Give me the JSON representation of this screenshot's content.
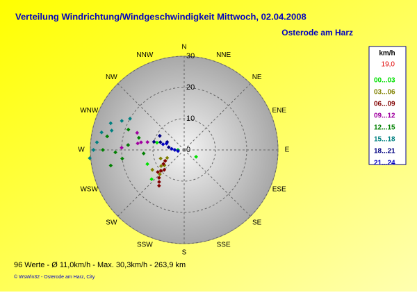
{
  "chart_data": {
    "type": "polar-scatter",
    "title": "Verteilung Windrichtung/Windgeschwindigkeit  Mittwoch, 02.04.2008",
    "subtitle": "Osterode am Harz",
    "footer": "96 Werte  -  Ø 11,0km/h  -  Max. 30,3km/h  -  263,9 km",
    "copyright": "© WsWin32  -  Osterode am Harz, City",
    "legend_title": "km/h",
    "legend_value": "19,0",
    "directions": [
      "N",
      "NNE",
      "NE",
      "ENE",
      "E",
      "ESE",
      "SE",
      "SSE",
      "S",
      "SSW",
      "SW",
      "WSW",
      "W",
      "WNW",
      "NW",
      "NNW"
    ],
    "rlim": [
      0,
      30
    ],
    "rticks": [
      0,
      10,
      20,
      30
    ],
    "series": [
      {
        "name": "00...03",
        "color": "#00e000",
        "direction": [
          228,
          249,
          120,
          270,
          285
        ],
        "speed": [
          14,
          12.6,
          4.4,
          2,
          9
        ]
      },
      {
        "name": "03...06",
        "color": "#808000",
        "direction": [
          232,
          235,
          240,
          228,
          245,
          225,
          250,
          238
        ],
        "speed": [
          8,
          9,
          7,
          10,
          6,
          11,
          8,
          12
        ]
      },
      {
        "name": "06...09",
        "color": "#800000",
        "direction": [
          225,
          230,
          222,
          236,
          218,
          228,
          240,
          215
        ],
        "speed": [
          9,
          11,
          12,
          8,
          13,
          10,
          7,
          14
        ]
      },
      {
        "name": "09...12",
        "color": "#a000a0",
        "direction": [
          278,
          282,
          275,
          285,
          280,
          290,
          272
        ],
        "speed": [
          15,
          12,
          18,
          10,
          14,
          16,
          20
        ]
      },
      {
        "name": "12...15",
        "color": "#008000",
        "direction": [
          268,
          275,
          262,
          280,
          285,
          258,
          270,
          290,
          265
        ],
        "speed": [
          22,
          18,
          20,
          25,
          15,
          24,
          26,
          19,
          13
        ]
      },
      {
        "name": "15...18",
        "color": "#008080",
        "direction": [
          282,
          290,
          275,
          270,
          295,
          300,
          285,
          265
        ],
        "speed": [
          27,
          25,
          28,
          29,
          22,
          20,
          24,
          30.3
        ]
      },
      {
        "name": "18...21",
        "color": "#000080",
        "direction": [
          288,
          295,
          300,
          285,
          280
        ],
        "speed": [
          8,
          6,
          9,
          10,
          5
        ]
      },
      {
        "name": "21...24",
        "color": "#0000c0",
        "direction": [
          275,
          285,
          290,
          270,
          260
        ],
        "speed": [
          4,
          7,
          6,
          3,
          2
        ]
      }
    ]
  }
}
